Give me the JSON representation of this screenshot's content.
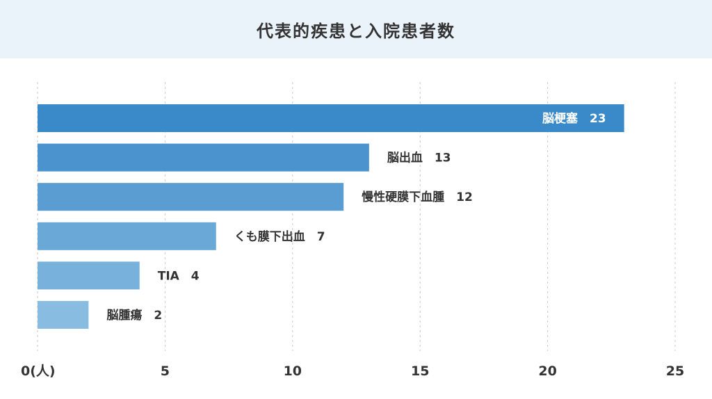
{
  "chart_data": {
    "type": "bar",
    "orientation": "horizontal",
    "title": "代表的疾患と入院患者数",
    "categories": [
      "脳梗塞",
      "脳出血",
      "慢性硬膜下血腫",
      "くも膜下出血",
      "TIA",
      "脳腫瘍"
    ],
    "values": [
      23,
      13,
      12,
      7,
      4,
      2
    ],
    "x_ticks": [
      "0(人)",
      "5",
      "10",
      "15",
      "20",
      "25"
    ],
    "xlim": [
      0,
      25
    ],
    "grid": "vertical dashed",
    "colors": [
      "#3a89c9",
      "#4a93cf",
      "#5a9dd3",
      "#69a8d7",
      "#78b1db",
      "#88bce0"
    ]
  }
}
